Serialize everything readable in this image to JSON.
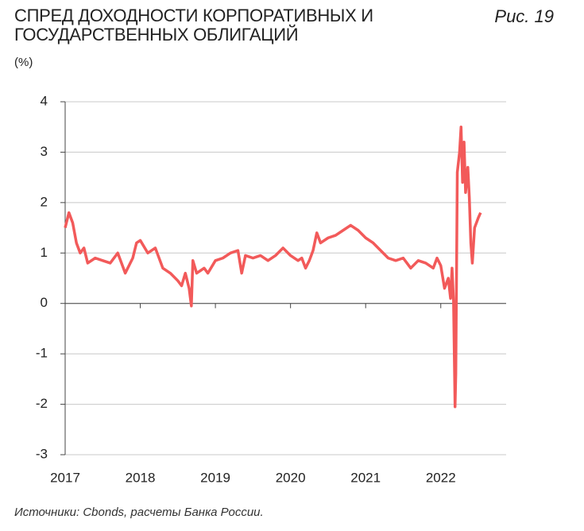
{
  "chart_data": {
    "type": "line",
    "title": "СПРЕД ДОХОДНОСТИ КОРПОРАТИВНЫХ И ГОСУДАРСТВЕННЫХ ОБЛИГАЦИЙ",
    "figure_label": "Рис. 19",
    "y_label": "(%)",
    "source": "Источники: Cbonds, расчеты Банка России.",
    "x": [
      2017.0,
      2017.05,
      2017.1,
      2017.15,
      2017.2,
      2017.25,
      2017.3,
      2017.4,
      2017.5,
      2017.6,
      2017.7,
      2017.8,
      2017.9,
      2017.95,
      2018.0,
      2018.1,
      2018.2,
      2018.3,
      2018.4,
      2018.5,
      2018.55,
      2018.6,
      2018.65,
      2018.68,
      2018.7,
      2018.75,
      2018.85,
      2018.9,
      2019.0,
      2019.1,
      2019.2,
      2019.3,
      2019.35,
      2019.4,
      2019.5,
      2019.6,
      2019.7,
      2019.8,
      2019.9,
      2020.0,
      2020.1,
      2020.15,
      2020.2,
      2020.25,
      2020.3,
      2020.35,
      2020.4,
      2020.5,
      2020.6,
      2020.7,
      2020.8,
      2020.9,
      2021.0,
      2021.1,
      2021.2,
      2021.3,
      2021.4,
      2021.5,
      2021.6,
      2021.7,
      2021.8,
      2021.9,
      2021.95,
      2022.0,
      2022.05,
      2022.1,
      2022.13,
      2022.15,
      2022.17,
      2022.19,
      2022.2,
      2022.22,
      2022.25,
      2022.27,
      2022.29,
      2022.31,
      2022.33,
      2022.36,
      2022.38,
      2022.4,
      2022.42,
      2022.45,
      2022.5,
      2022.53
    ],
    "series": [
      {
        "name": "Спред",
        "color": "#f25a5a",
        "values": [
          1.5,
          1.8,
          1.6,
          1.2,
          1.0,
          1.1,
          0.8,
          0.9,
          0.85,
          0.8,
          1.0,
          0.6,
          0.9,
          1.2,
          1.25,
          1.0,
          1.1,
          0.7,
          0.6,
          0.45,
          0.35,
          0.6,
          0.3,
          -0.05,
          0.85,
          0.6,
          0.7,
          0.6,
          0.85,
          0.9,
          1.0,
          1.05,
          0.6,
          0.95,
          0.9,
          0.95,
          0.85,
          0.95,
          1.1,
          0.95,
          0.85,
          0.9,
          0.7,
          0.85,
          1.05,
          1.4,
          1.2,
          1.3,
          1.35,
          1.45,
          1.55,
          1.45,
          1.3,
          1.2,
          1.05,
          0.9,
          0.85,
          0.9,
          0.7,
          0.85,
          0.8,
          0.7,
          0.9,
          0.75,
          0.3,
          0.5,
          0.1,
          0.7,
          0.05,
          -2.05,
          -1.4,
          2.6,
          3.0,
          3.5,
          2.4,
          3.2,
          2.2,
          2.7,
          2.1,
          1.2,
          0.8,
          1.5,
          1.7,
          1.8
        ]
      }
    ],
    "xlim": [
      2017,
      2022.87
    ],
    "xticks": [
      2017,
      2018,
      2019,
      2020,
      2021,
      2022
    ],
    "ylim": [
      -3,
      4
    ],
    "yticks": [
      -3,
      -2,
      -1,
      0,
      1,
      2,
      3,
      4
    ],
    "grid": true
  }
}
